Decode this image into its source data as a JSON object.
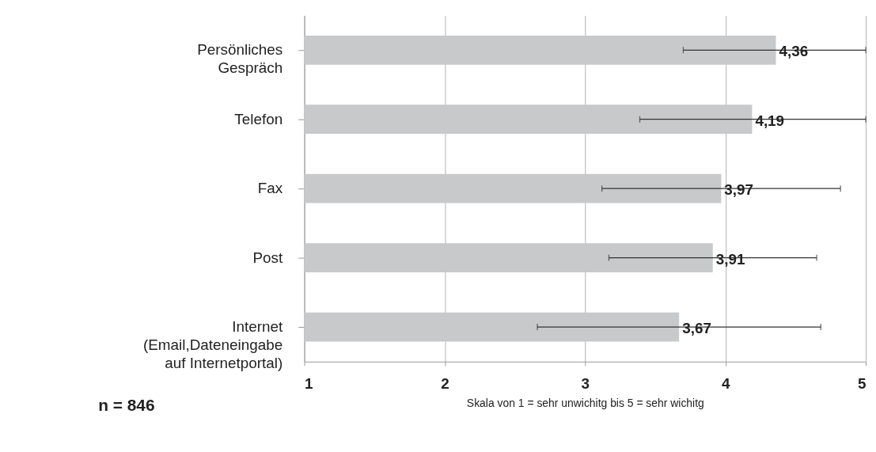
{
  "chart_data": {
    "type": "bar",
    "orientation": "horizontal",
    "categories": [
      "Persönliches\nGespräch",
      "Telefon",
      "Fax",
      "Post",
      "Internet\n(Email,Dateneingabe\nauf Internetportal)"
    ],
    "values": [
      4.36,
      4.19,
      3.97,
      3.91,
      3.67
    ],
    "errors": [
      [
        3.7,
        5
      ],
      [
        3.39,
        5
      ],
      [
        3.12,
        4.82
      ],
      [
        3.17,
        4.65
      ],
      [
        2.66,
        4.68
      ]
    ],
    "value_labels": [
      "4,36",
      "4,19",
      "3,97",
      "3,91",
      "3,67"
    ],
    "color": "#c8c9cb",
    "xlim": [
      1,
      5
    ],
    "xticks": [
      1,
      2,
      3,
      4,
      5
    ],
    "xlabel": "Skala von 1 = sehr unwichitg bis 5 = sehr wichitg",
    "annotations": [
      "n = 846"
    ],
    "grid": "x"
  }
}
